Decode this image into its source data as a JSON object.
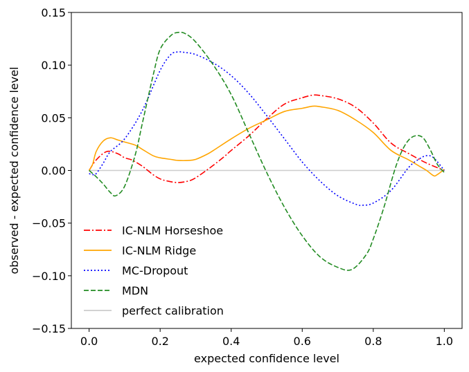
{
  "chart_data": {
    "type": "line",
    "title": "",
    "xlabel": "expected confidence level",
    "ylabel": "observed - expected confidence level",
    "xlim": [
      -0.05,
      1.05
    ],
    "ylim": [
      -0.15,
      0.15
    ],
    "xticks": [
      0.0,
      0.2,
      0.4,
      0.6,
      0.8,
      1.0
    ],
    "xtick_labels": [
      "0.0",
      "0.2",
      "0.4",
      "0.6",
      "0.8",
      "1.0"
    ],
    "yticks": [
      -0.15,
      -0.1,
      -0.05,
      0.0,
      0.05,
      0.1,
      0.15
    ],
    "ytick_labels": [
      "−0.15",
      "−0.10",
      "−0.05",
      "0.00",
      "0.05",
      "0.10",
      "0.15"
    ],
    "grid": false,
    "legend_position": "lower-left",
    "series": [
      {
        "name": "IC-NLM Horseshoe",
        "color": "#ff0000",
        "style": "dashdot",
        "x": [
          0.0,
          0.02,
          0.05,
          0.08,
          0.1,
          0.12,
          0.15,
          0.18,
          0.2,
          0.22,
          0.25,
          0.28,
          0.3,
          0.33,
          0.35,
          0.38,
          0.4,
          0.45,
          0.5,
          0.55,
          0.6,
          0.63,
          0.65,
          0.7,
          0.75,
          0.8,
          0.85,
          0.9,
          0.95,
          1.0
        ],
        "y": [
          0.0,
          0.01,
          0.018,
          0.016,
          0.012,
          0.01,
          0.004,
          -0.004,
          -0.008,
          -0.01,
          -0.0115,
          -0.01,
          -0.007,
          0.0,
          0.005,
          0.013,
          0.019,
          0.033,
          0.049,
          0.063,
          0.069,
          0.0715,
          0.0712,
          0.068,
          0.06,
          0.045,
          0.026,
          0.016,
          0.007,
          0.0
        ]
      },
      {
        "name": "IC-NLM Ridge",
        "color": "#ffa500",
        "style": "solid",
        "x": [
          0.0,
          0.01,
          0.02,
          0.04,
          0.06,
          0.08,
          0.1,
          0.13,
          0.15,
          0.18,
          0.2,
          0.23,
          0.25,
          0.28,
          0.3,
          0.33,
          0.35,
          0.4,
          0.45,
          0.5,
          0.55,
          0.6,
          0.63,
          0.65,
          0.7,
          0.75,
          0.8,
          0.85,
          0.9,
          0.93,
          0.95,
          0.97,
          0.98,
          1.0
        ],
        "y": [
          0.0,
          0.006,
          0.018,
          0.028,
          0.031,
          0.029,
          0.027,
          0.024,
          0.02,
          0.014,
          0.012,
          0.0105,
          0.0095,
          0.0095,
          0.0105,
          0.015,
          0.019,
          0.03,
          0.04,
          0.048,
          0.056,
          0.059,
          0.061,
          0.0605,
          0.057,
          0.048,
          0.036,
          0.019,
          0.01,
          0.004,
          0.0,
          -0.005,
          -0.004,
          0.001
        ]
      },
      {
        "name": "MC-Dropout",
        "color": "#0000ff",
        "style": "dotted",
        "x": [
          0.0,
          0.01,
          0.02,
          0.04,
          0.06,
          0.1,
          0.15,
          0.2,
          0.23,
          0.25,
          0.27,
          0.3,
          0.35,
          0.4,
          0.45,
          0.5,
          0.55,
          0.6,
          0.65,
          0.7,
          0.75,
          0.77,
          0.8,
          0.85,
          0.9,
          0.93,
          0.95,
          0.97,
          1.0
        ],
        "y": [
          -0.003,
          -0.004,
          -0.003,
          0.007,
          0.018,
          0.03,
          0.057,
          0.095,
          0.11,
          0.1125,
          0.112,
          0.11,
          0.102,
          0.09,
          0.073,
          0.052,
          0.03,
          0.008,
          -0.01,
          -0.024,
          -0.032,
          -0.033,
          -0.031,
          -0.019,
          0.003,
          0.011,
          0.014,
          0.012,
          0.0
        ]
      },
      {
        "name": "MDN",
        "color": "#228b22",
        "style": "dashed",
        "x": [
          0.0,
          0.02,
          0.04,
          0.06,
          0.075,
          0.1,
          0.13,
          0.15,
          0.18,
          0.2,
          0.23,
          0.25,
          0.27,
          0.3,
          0.35,
          0.4,
          0.45,
          0.5,
          0.55,
          0.6,
          0.65,
          0.7,
          0.74,
          0.78,
          0.8,
          0.83,
          0.86,
          0.88,
          0.9,
          0.92,
          0.94,
          0.96,
          0.98,
          1.0
        ],
        "y": [
          0.0,
          -0.006,
          -0.013,
          -0.021,
          -0.024,
          -0.015,
          0.015,
          0.045,
          0.09,
          0.115,
          0.128,
          0.131,
          0.13,
          0.122,
          0.1,
          0.072,
          0.035,
          -0.002,
          -0.035,
          -0.062,
          -0.082,
          -0.092,
          -0.094,
          -0.08,
          -0.065,
          -0.035,
          0.0,
          0.018,
          0.029,
          0.033,
          0.031,
          0.02,
          0.006,
          -0.002
        ]
      },
      {
        "name": "perfect calibration",
        "color": "#cccccc",
        "style": "solid",
        "x": [
          0.0,
          1.0
        ],
        "y": [
          0.0,
          0.0
        ]
      }
    ]
  }
}
